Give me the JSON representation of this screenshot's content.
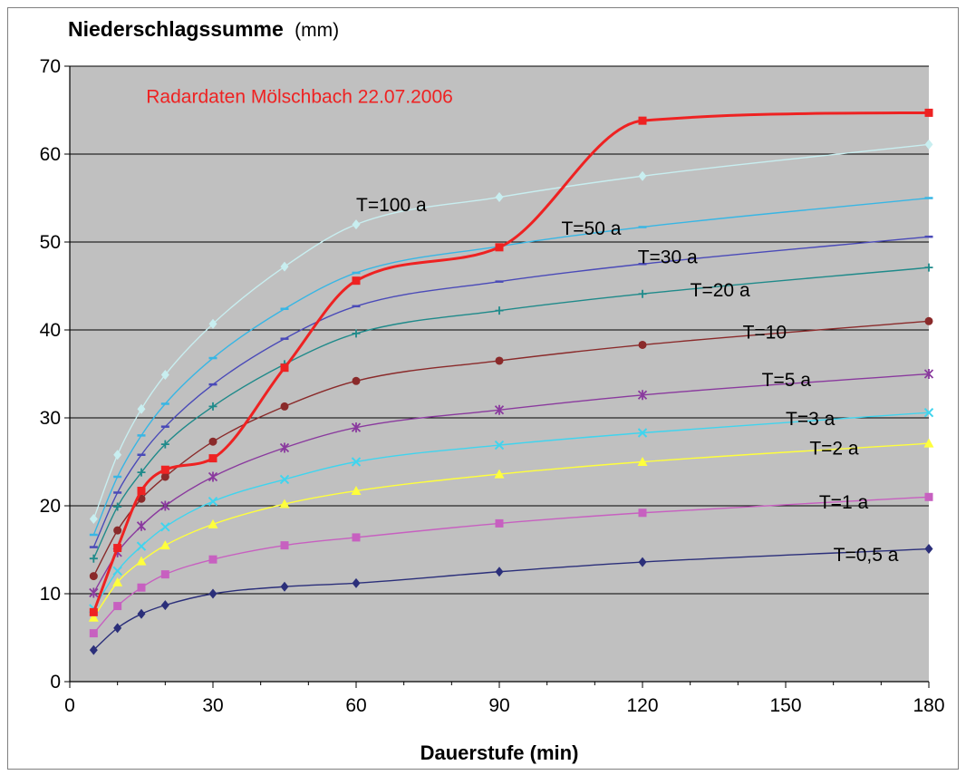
{
  "chart_data": {
    "type": "line",
    "title": "",
    "ylabel": "Niederschlagssumme",
    "ylabel_unit": "(mm)",
    "xlabel": "Dauerstufe (min)",
    "xlim": [
      0,
      180
    ],
    "ylim": [
      0,
      70
    ],
    "xticks": [
      "0",
      "30",
      "60",
      "90",
      "120",
      "150",
      "180"
    ],
    "yticks": [
      "0",
      "10",
      "20",
      "30",
      "40",
      "50",
      "60",
      "70"
    ],
    "grid": "horizontal",
    "plot_background": "#c0c0c0",
    "x": [
      5,
      10,
      15,
      20,
      30,
      45,
      60,
      90,
      120,
      180
    ],
    "series": [
      {
        "label": "T=0,5 a",
        "color": "#2b2f7a",
        "marker": "diamond",
        "values": [
          3.6,
          6.1,
          7.7,
          8.7,
          10.0,
          10.8,
          11.2,
          12.5,
          13.6,
          15.1
        ]
      },
      {
        "label": "T=1 a",
        "color": "#c760c0",
        "marker": "square",
        "values": [
          5.5,
          8.6,
          10.7,
          12.2,
          13.9,
          15.5,
          16.4,
          18.0,
          19.2,
          21.0
        ]
      },
      {
        "label": "T=2 a",
        "color": "#ffff3c",
        "marker": "triangle",
        "values": [
          7.3,
          11.3,
          13.7,
          15.5,
          17.9,
          20.2,
          21.7,
          23.6,
          25.0,
          27.1
        ]
      },
      {
        "label": "T=3 a",
        "color": "#40d4ee",
        "marker": "x",
        "values": [
          8.3,
          12.6,
          15.4,
          17.6,
          20.5,
          23.0,
          25.0,
          26.9,
          28.3,
          30.6
        ]
      },
      {
        "label": "T=5 a",
        "color": "#8a3a9e",
        "marker": "star",
        "values": [
          10.1,
          14.7,
          17.7,
          20.0,
          23.3,
          26.6,
          28.9,
          30.9,
          32.6,
          35.0
        ]
      },
      {
        "label": "T=10",
        "color": "#8a2a2a",
        "marker": "circle",
        "values": [
          12.0,
          17.2,
          20.8,
          23.3,
          27.3,
          31.3,
          34.2,
          36.5,
          38.3,
          41.0
        ]
      },
      {
        "label": "T=20 a",
        "color": "#1f8a8a",
        "marker": "plus",
        "values": [
          14.0,
          19.9,
          23.8,
          27.0,
          31.3,
          36.1,
          39.6,
          42.2,
          44.1,
          47.1
        ]
      },
      {
        "label": "T=30 a",
        "color": "#4a4ab8",
        "marker": "dash",
        "values": [
          15.3,
          21.5,
          25.8,
          29.0,
          33.8,
          39.0,
          42.7,
          45.5,
          47.5,
          50.6
        ]
      },
      {
        "label": "T=50 a",
        "color": "#38b6e4",
        "marker": "dash",
        "values": [
          16.7,
          23.3,
          28.0,
          31.6,
          36.8,
          42.4,
          46.5,
          49.5,
          51.7,
          55.0
        ]
      },
      {
        "label": "T=100 a",
        "color": "#c8eef0",
        "marker": "diamond",
        "values": [
          18.5,
          25.8,
          31.0,
          34.9,
          40.7,
          47.2,
          52.0,
          55.1,
          57.5,
          61.1
        ]
      },
      {
        "label": "Radardaten Mölschbach 22.07.2006",
        "color": "#ee2222",
        "marker": "square",
        "bold": true,
        "values": [
          7.9,
          15.2,
          21.7,
          24.1,
          25.4,
          35.7,
          45.6,
          49.4,
          63.8,
          64.7
        ]
      }
    ],
    "annotations": [
      {
        "text": "Radardaten Mölschbach 22.07.2006",
        "x": 16,
        "y": 65.8,
        "color": "#ee2222"
      },
      {
        "text": "T=100 a",
        "x": 60,
        "y": 53.5,
        "color": "#000000"
      },
      {
        "text": "T=50 a",
        "x": 103,
        "y": 50.8,
        "color": "#000000"
      },
      {
        "text": "T=30 a",
        "x": 119,
        "y": 47.6,
        "color": "#000000"
      },
      {
        "text": "T=20 a",
        "x": 130,
        "y": 43.8,
        "color": "#000000"
      },
      {
        "text": "T=10",
        "x": 141,
        "y": 39.0,
        "color": "#000000"
      },
      {
        "text": "T=5 a",
        "x": 145,
        "y": 33.6,
        "color": "#000000"
      },
      {
        "text": "T=3 a",
        "x": 150,
        "y": 29.2,
        "color": "#000000"
      },
      {
        "text": "T=2 a",
        "x": 155,
        "y": 25.8,
        "color": "#000000"
      },
      {
        "text": "T=1 a",
        "x": 157,
        "y": 19.7,
        "color": "#000000"
      },
      {
        "text": "T=0,5 a",
        "x": 160,
        "y": 13.7,
        "color": "#000000"
      }
    ]
  }
}
